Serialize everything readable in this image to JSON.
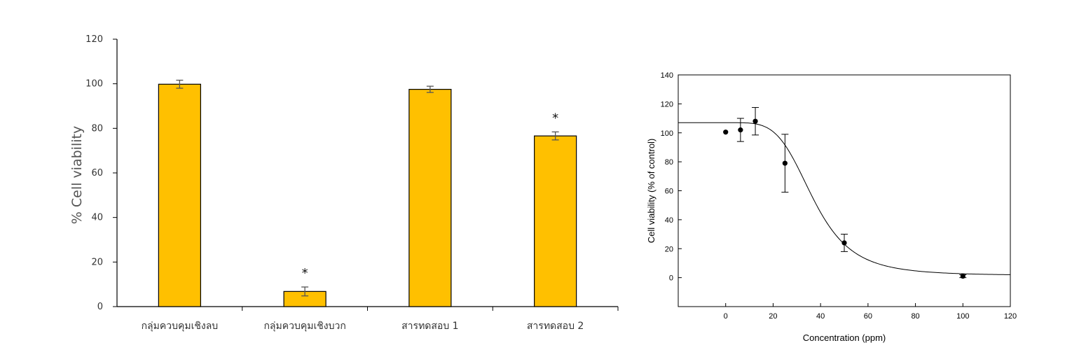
{
  "chart_data": [
    {
      "type": "bar",
      "title": "",
      "xlabel": "",
      "ylabel": "% Cell viability",
      "ylim": [
        0,
        120
      ],
      "yticks": [
        0,
        20,
        40,
        60,
        80,
        100,
        120
      ],
      "categories": [
        "กลุ่มควบคุมเชิงลบ",
        "กลุ่มควบคุมเชิงบวก",
        "สารทดสอบ 1",
        "สารทดสอบ 2"
      ],
      "values": [
        99.8,
        6.8,
        97.5,
        76.6
      ],
      "errors": [
        1.8,
        2.0,
        1.4,
        1.8
      ],
      "annotations": [
        "",
        "*",
        "",
        "*"
      ],
      "bar_color": "#FFC000",
      "edge_color": "#000000",
      "grid": false
    },
    {
      "type": "scatter",
      "title": "",
      "xlabel": "Concentration (ppm)",
      "ylabel": "Cell viability (% of control)",
      "xlim": [
        -20,
        120
      ],
      "ylim": [
        -20,
        140
      ],
      "xticks": [
        0,
        20,
        40,
        60,
        80,
        100,
        120
      ],
      "yticks": [
        0,
        20,
        40,
        60,
        80,
        100,
        120,
        140
      ],
      "points": [
        {
          "x": 0,
          "y": 100.5,
          "err": 0
        },
        {
          "x": 6.25,
          "y": 102,
          "err": 8
        },
        {
          "x": 12.5,
          "y": 108,
          "err": 9.5
        },
        {
          "x": 25,
          "y": 79,
          "err": 20
        },
        {
          "x": 50,
          "y": 24,
          "err": 6
        },
        {
          "x": 100,
          "y": 1,
          "err": 1
        }
      ],
      "fit": {
        "type": "sigmoid",
        "top": 107,
        "bottom": 1.5,
        "x50": 37,
        "hill": 4.5
      },
      "marker_color": "#000000",
      "grid": false
    }
  ]
}
